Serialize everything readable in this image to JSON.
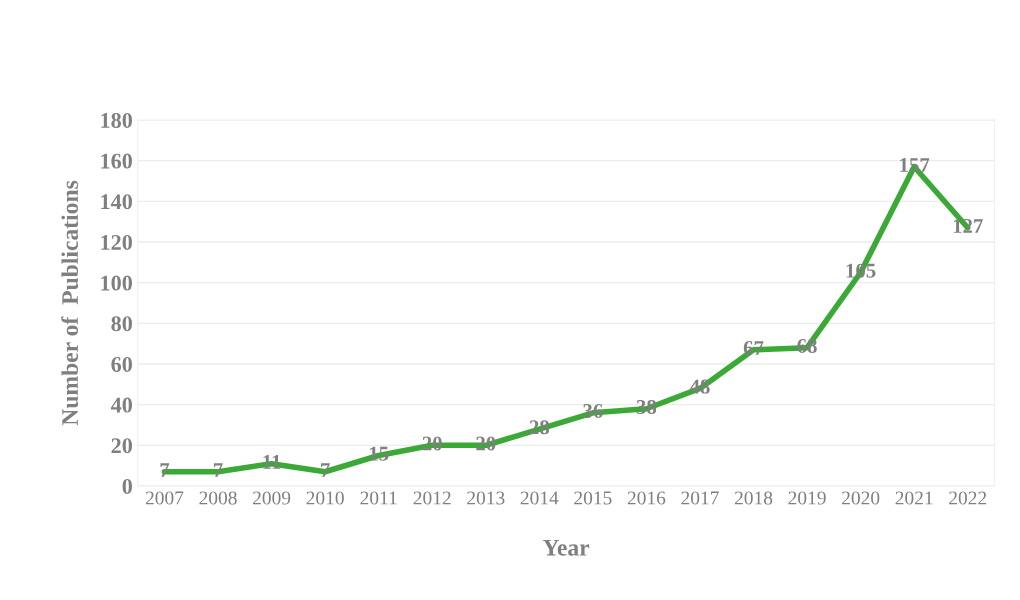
{
  "chart_data": {
    "type": "line",
    "xlabel": "Year",
    "ylabel": "Number of  Publications",
    "categories": [
      "2007",
      "2008",
      "2009",
      "2010",
      "2011",
      "2012",
      "2013",
      "2014",
      "2015",
      "2016",
      "2017",
      "2018",
      "2019",
      "2020",
      "2021",
      "2022"
    ],
    "series": [
      {
        "color": "#3aa935",
        "values": [
          7,
          7,
          11,
          7,
          15,
          20,
          20,
          28,
          36,
          38,
          48,
          67,
          68,
          105,
          157,
          127
        ]
      }
    ],
    "ylim": [
      0,
      180
    ],
    "yticks": [
      0,
      20,
      40,
      60,
      80,
      100,
      120,
      140,
      160,
      180
    ],
    "grid": "y",
    "data_labels": true,
    "marker": "none",
    "line_style": "solid"
  }
}
